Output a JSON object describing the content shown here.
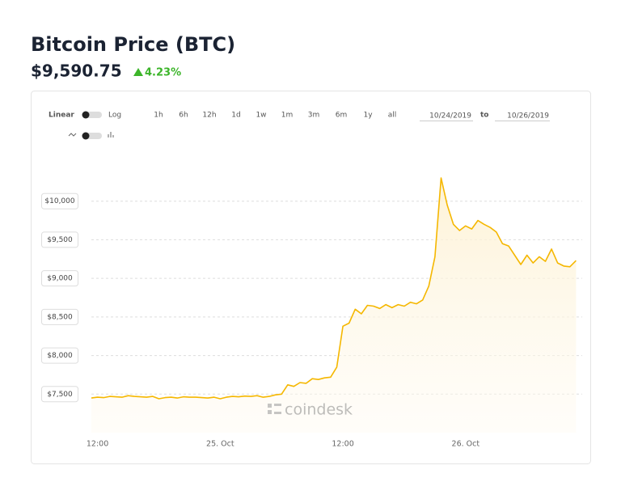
{
  "header": {
    "title": "Bitcoin Price (BTC)",
    "price": "$9,590.75",
    "change": "4.23%"
  },
  "controls": {
    "scale_options": [
      "Linear",
      "Log"
    ],
    "ranges": [
      "1h",
      "6h",
      "12h",
      "1d",
      "1w",
      "1m",
      "3m",
      "6m",
      "1y",
      "all"
    ],
    "date_from": "10/24/2019",
    "date_separator": "to",
    "date_to": "10/26/2019"
  },
  "chart_data": {
    "type": "line",
    "watermark": "coindesk",
    "color": "#f5b700",
    "grid": true,
    "categories": [
      null,
      "12:00",
      null,
      null,
      null,
      null,
      null,
      null,
      null,
      null,
      null,
      null,
      null,
      null,
      null,
      null,
      null,
      null,
      null,
      null,
      null,
      "25. Oct",
      null,
      null,
      null,
      null,
      null,
      null,
      null,
      null,
      null,
      null,
      null,
      null,
      null,
      null,
      null,
      null,
      null,
      null,
      null,
      "12:00",
      null,
      null,
      null,
      null,
      null,
      null,
      null,
      null,
      null,
      null,
      null,
      null,
      null,
      null,
      null,
      null,
      null,
      null,
      null,
      "26. Oct",
      null,
      null,
      null,
      null,
      null,
      null,
      null,
      null,
      null,
      null,
      null,
      null,
      null,
      null,
      null,
      null,
      null,
      null
    ],
    "values": [
      7450,
      7460,
      7455,
      7470,
      7465,
      7460,
      7480,
      7470,
      7465,
      7460,
      7470,
      7440,
      7455,
      7460,
      7450,
      7465,
      7460,
      7460,
      7455,
      7450,
      7460,
      7440,
      7460,
      7470,
      7465,
      7475,
      7470,
      7480,
      7460,
      7470,
      7490,
      7500,
      7620,
      7600,
      7650,
      7640,
      7700,
      7690,
      7710,
      7720,
      7850,
      8380,
      8420,
      8600,
      8540,
      8650,
      8640,
      8610,
      8660,
      8620,
      8660,
      8640,
      8690,
      8670,
      8720,
      8900,
      9280,
      10300,
      9950,
      9700,
      9620,
      9680,
      9640,
      9750,
      9700,
      9660,
      9600,
      9450,
      9420,
      9300,
      9180,
      9300,
      9200,
      9280,
      9220,
      9380,
      9200,
      9160,
      9150,
      9230
    ],
    "ylim": [
      7000,
      10500
    ],
    "yticks": [
      {
        "value": 7500,
        "label": "$7,500"
      },
      {
        "value": 8000,
        "label": "$8,000"
      },
      {
        "value": 8500,
        "label": "$8,500"
      },
      {
        "value": 9000,
        "label": "$9,000"
      },
      {
        "value": 9500,
        "label": "$9,500"
      },
      {
        "value": 10000,
        "label": "$10,000"
      }
    ]
  }
}
